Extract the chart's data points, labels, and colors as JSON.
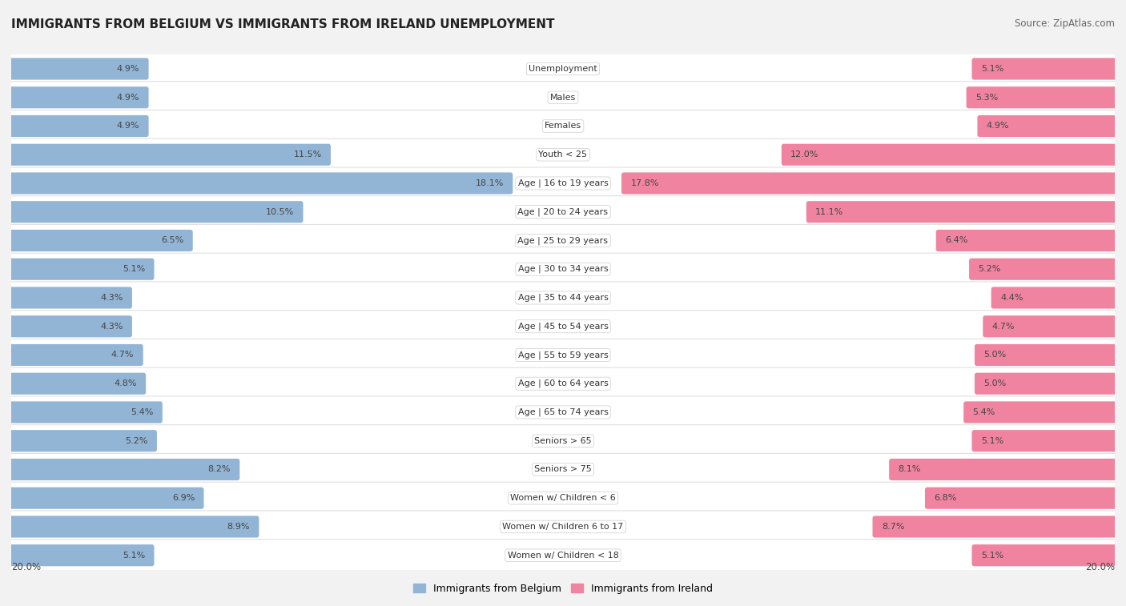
{
  "title": "IMMIGRANTS FROM BELGIUM VS IMMIGRANTS FROM IRELAND UNEMPLOYMENT",
  "source": "Source: ZipAtlas.com",
  "categories": [
    "Unemployment",
    "Males",
    "Females",
    "Youth < 25",
    "Age | 16 to 19 years",
    "Age | 20 to 24 years",
    "Age | 25 to 29 years",
    "Age | 30 to 34 years",
    "Age | 35 to 44 years",
    "Age | 45 to 54 years",
    "Age | 55 to 59 years",
    "Age | 60 to 64 years",
    "Age | 65 to 74 years",
    "Seniors > 65",
    "Seniors > 75",
    "Women w/ Children < 6",
    "Women w/ Children 6 to 17",
    "Women w/ Children < 18"
  ],
  "belgium_values": [
    4.9,
    4.9,
    4.9,
    11.5,
    18.1,
    10.5,
    6.5,
    5.1,
    4.3,
    4.3,
    4.7,
    4.8,
    5.4,
    5.2,
    8.2,
    6.9,
    8.9,
    5.1
  ],
  "ireland_values": [
    5.1,
    5.3,
    4.9,
    12.0,
    17.8,
    11.1,
    6.4,
    5.2,
    4.4,
    4.7,
    5.0,
    5.0,
    5.4,
    5.1,
    8.1,
    6.8,
    8.7,
    5.1
  ],
  "belgium_color": "#93b5d5",
  "ireland_color": "#f084a0",
  "background_color": "#f2f2f2",
  "row_bg_color": "#ffffff",
  "row_edge_color": "#e0e0e0",
  "max_value": 20.0,
  "label_belgium": "Immigrants from Belgium",
  "label_ireland": "Immigrants from Ireland",
  "title_fontsize": 11,
  "source_fontsize": 8.5,
  "label_fontsize": 8.0,
  "value_fontsize": 8.0
}
